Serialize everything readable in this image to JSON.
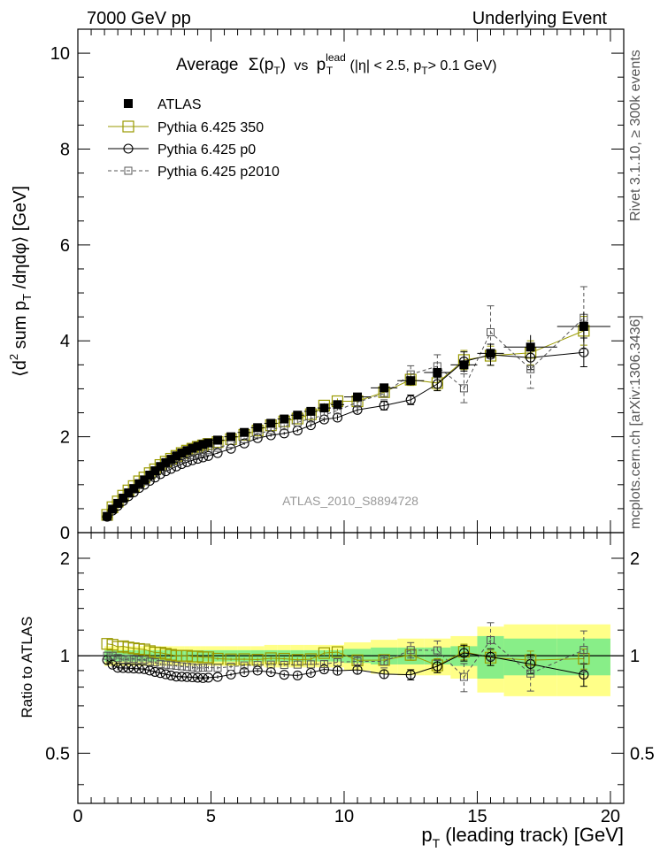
{
  "header": {
    "left": "7000 GeV pp",
    "right": "Underlying Event"
  },
  "side_labels": {
    "rivet": "Rivet 3.1.10, ≥ 300k events",
    "mcplots": "mcplots.cern.ch [arXiv:1306.3436]"
  },
  "chart_data": {
    "type": "scatter",
    "title": "Average Σ(pT) vs pT^lead (|η| < 2.5, pT > 0.1 GeV)",
    "title_parts": {
      "average": "Average",
      "sigma": "Σ(p",
      "t_sub": "T",
      "close": ")",
      "vs": "vs",
      "p": "p",
      "lead_sup": "lead",
      "cuts_a": "(|η| < 2.5, p",
      "cuts_b": "> 0.1 GeV)"
    },
    "ylabel_parts": {
      "a": "⟨d",
      "sup2": "2",
      "b": " sum p",
      "sub": "T",
      "c": " /dηdφ⟩ [GeV]"
    },
    "xlabel_parts": {
      "a": "p",
      "sub": "T",
      "b": " (leading track) [GeV]"
    },
    "ratio_ylabel": "Ratio to ATLAS",
    "analysis_id": "ATLAS_2010_S8894728",
    "xlim": [
      0,
      20.5
    ],
    "main_ylim": [
      0,
      10.5
    ],
    "ratio_ylim": [
      0.35,
      2.4
    ],
    "x_ticks": [
      0,
      5,
      10,
      15,
      20
    ],
    "x_tick_labels": [
      "0",
      "5",
      "10",
      "15",
      "20"
    ],
    "main_y_ticks": [
      0,
      2,
      4,
      6,
      8,
      10
    ],
    "main_y_tick_labels": [
      "0",
      "2",
      "4",
      "6",
      "8",
      "10"
    ],
    "ratio_y_ticks": [
      0.5,
      1,
      2
    ],
    "ratio_y_tick_labels": [
      "0.5",
      "1",
      "2"
    ],
    "x": [
      1.1,
      1.3,
      1.5,
      1.7,
      1.9,
      2.1,
      2.3,
      2.5,
      2.7,
      2.9,
      3.1,
      3.3,
      3.5,
      3.7,
      3.9,
      4.1,
      4.3,
      4.5,
      4.7,
      4.9,
      5.25,
      5.75,
      6.25,
      6.75,
      7.25,
      7.75,
      8.25,
      8.75,
      9.25,
      9.75,
      10.5,
      11.5,
      12.5,
      13.5,
      14.5,
      15.5,
      17,
      19
    ],
    "x_err": [
      0.1,
      0.1,
      0.1,
      0.1,
      0.1,
      0.1,
      0.1,
      0.1,
      0.1,
      0.1,
      0.1,
      0.1,
      0.1,
      0.1,
      0.1,
      0.1,
      0.1,
      0.1,
      0.1,
      0.1,
      0.25,
      0.25,
      0.25,
      0.25,
      0.25,
      0.25,
      0.25,
      0.25,
      0.25,
      0.25,
      0.5,
      0.5,
      0.5,
      0.5,
      0.5,
      0.5,
      1,
      1
    ],
    "series": [
      {
        "name": "ATLAS",
        "style": "filled-square",
        "color": "#000000",
        "values": [
          0.34,
          0.49,
          0.61,
          0.72,
          0.83,
          0.92,
          1.02,
          1.1,
          1.2,
          1.29,
          1.38,
          1.46,
          1.53,
          1.6,
          1.66,
          1.71,
          1.76,
          1.8,
          1.84,
          1.87,
          1.93,
          2.0,
          2.09,
          2.19,
          2.28,
          2.37,
          2.45,
          2.53,
          2.6,
          2.67,
          2.83,
          3.02,
          3.17,
          3.34,
          3.5,
          3.74,
          3.87,
          4.3
        ],
        "errors": [
          0.02,
          0.02,
          0.02,
          0.02,
          0.02,
          0.02,
          0.02,
          0.02,
          0.02,
          0.02,
          0.02,
          0.02,
          0.02,
          0.02,
          0.02,
          0.02,
          0.02,
          0.02,
          0.02,
          0.02,
          0.03,
          0.03,
          0.03,
          0.03,
          0.04,
          0.04,
          0.04,
          0.05,
          0.05,
          0.05,
          0.06,
          0.08,
          0.1,
          0.13,
          0.16,
          0.2,
          0.25,
          0.3
        ],
        "band_stat": [
          0.04,
          0.04,
          0.04,
          0.04,
          0.04,
          0.04,
          0.04,
          0.04,
          0.04,
          0.04,
          0.04,
          0.04,
          0.04,
          0.04,
          0.04,
          0.04,
          0.04,
          0.04,
          0.04,
          0.04,
          0.04,
          0.04,
          0.04,
          0.04,
          0.04,
          0.04,
          0.04,
          0.04,
          0.04,
          0.04,
          0.05,
          0.06,
          0.06,
          0.06,
          0.07,
          0.15,
          0.13,
          0.13
        ],
        "band_tot": [
          0.07,
          0.07,
          0.07,
          0.07,
          0.07,
          0.07,
          0.07,
          0.07,
          0.07,
          0.07,
          0.07,
          0.07,
          0.07,
          0.07,
          0.07,
          0.07,
          0.07,
          0.07,
          0.07,
          0.07,
          0.07,
          0.07,
          0.07,
          0.07,
          0.08,
          0.08,
          0.08,
          0.08,
          0.08,
          0.08,
          0.1,
          0.12,
          0.13,
          0.13,
          0.15,
          0.23,
          0.25,
          0.25
        ]
      },
      {
        "name": "Pythia 6.425 350",
        "style": "open-square",
        "color": "#9a9a00",
        "dash": "",
        "values": [
          0.37,
          0.53,
          0.65,
          0.77,
          0.88,
          0.97,
          1.07,
          1.15,
          1.24,
          1.32,
          1.41,
          1.48,
          1.54,
          1.6,
          1.66,
          1.71,
          1.75,
          1.79,
          1.82,
          1.85,
          1.89,
          1.95,
          2.04,
          2.13,
          2.24,
          2.32,
          2.38,
          2.47,
          2.65,
          2.74,
          2.74,
          2.93,
          3.19,
          3.12,
          3.6,
          3.69,
          3.75,
          4.21
        ],
        "errors": [
          0.01,
          0.01,
          0.01,
          0.01,
          0.01,
          0.01,
          0.01,
          0.01,
          0.01,
          0.01,
          0.01,
          0.01,
          0.01,
          0.01,
          0.01,
          0.01,
          0.01,
          0.02,
          0.02,
          0.02,
          0.02,
          0.02,
          0.02,
          0.03,
          0.03,
          0.03,
          0.04,
          0.04,
          0.05,
          0.06,
          0.07,
          0.09,
          0.12,
          0.15,
          0.2,
          0.2,
          0.25,
          0.3
        ]
      },
      {
        "name": "Pythia 6.425 p0",
        "style": "open-circle",
        "color": "#000000",
        "dash": "",
        "values": [
          0.33,
          0.46,
          0.56,
          0.66,
          0.76,
          0.84,
          0.93,
          1.0,
          1.08,
          1.15,
          1.22,
          1.28,
          1.33,
          1.38,
          1.43,
          1.47,
          1.51,
          1.54,
          1.57,
          1.6,
          1.66,
          1.75,
          1.86,
          1.97,
          2.03,
          2.07,
          2.13,
          2.24,
          2.36,
          2.4,
          2.56,
          2.65,
          2.77,
          3.1,
          3.57,
          3.71,
          3.65,
          3.76
        ],
        "errors": [
          0.01,
          0.01,
          0.01,
          0.01,
          0.01,
          0.01,
          0.01,
          0.01,
          0.01,
          0.01,
          0.01,
          0.01,
          0.01,
          0.01,
          0.01,
          0.01,
          0.01,
          0.02,
          0.02,
          0.02,
          0.02,
          0.02,
          0.03,
          0.03,
          0.03,
          0.03,
          0.04,
          0.04,
          0.05,
          0.06,
          0.07,
          0.09,
          0.1,
          0.14,
          0.2,
          0.22,
          0.25,
          0.3
        ]
      },
      {
        "name": "Pythia 6.425 p2010",
        "style": "open-small-square",
        "color": "#555555",
        "dash": "4,3",
        "values": [
          0.34,
          0.49,
          0.6,
          0.7,
          0.81,
          0.9,
          0.99,
          1.07,
          1.15,
          1.23,
          1.3,
          1.37,
          1.43,
          1.49,
          1.54,
          1.58,
          1.62,
          1.65,
          1.69,
          1.72,
          1.77,
          1.85,
          1.95,
          2.05,
          2.14,
          2.22,
          2.3,
          2.38,
          2.45,
          2.55,
          2.72,
          2.9,
          3.3,
          3.47,
          3.01,
          4.18,
          3.41,
          4.48
        ],
        "errors": [
          0.01,
          0.01,
          0.01,
          0.01,
          0.01,
          0.01,
          0.01,
          0.01,
          0.01,
          0.01,
          0.01,
          0.01,
          0.01,
          0.01,
          0.01,
          0.01,
          0.02,
          0.02,
          0.02,
          0.02,
          0.02,
          0.02,
          0.03,
          0.03,
          0.04,
          0.04,
          0.05,
          0.05,
          0.06,
          0.07,
          0.1,
          0.13,
          0.18,
          0.24,
          0.3,
          0.55,
          0.4,
          0.65
        ]
      }
    ],
    "legend_position": "top-left"
  }
}
